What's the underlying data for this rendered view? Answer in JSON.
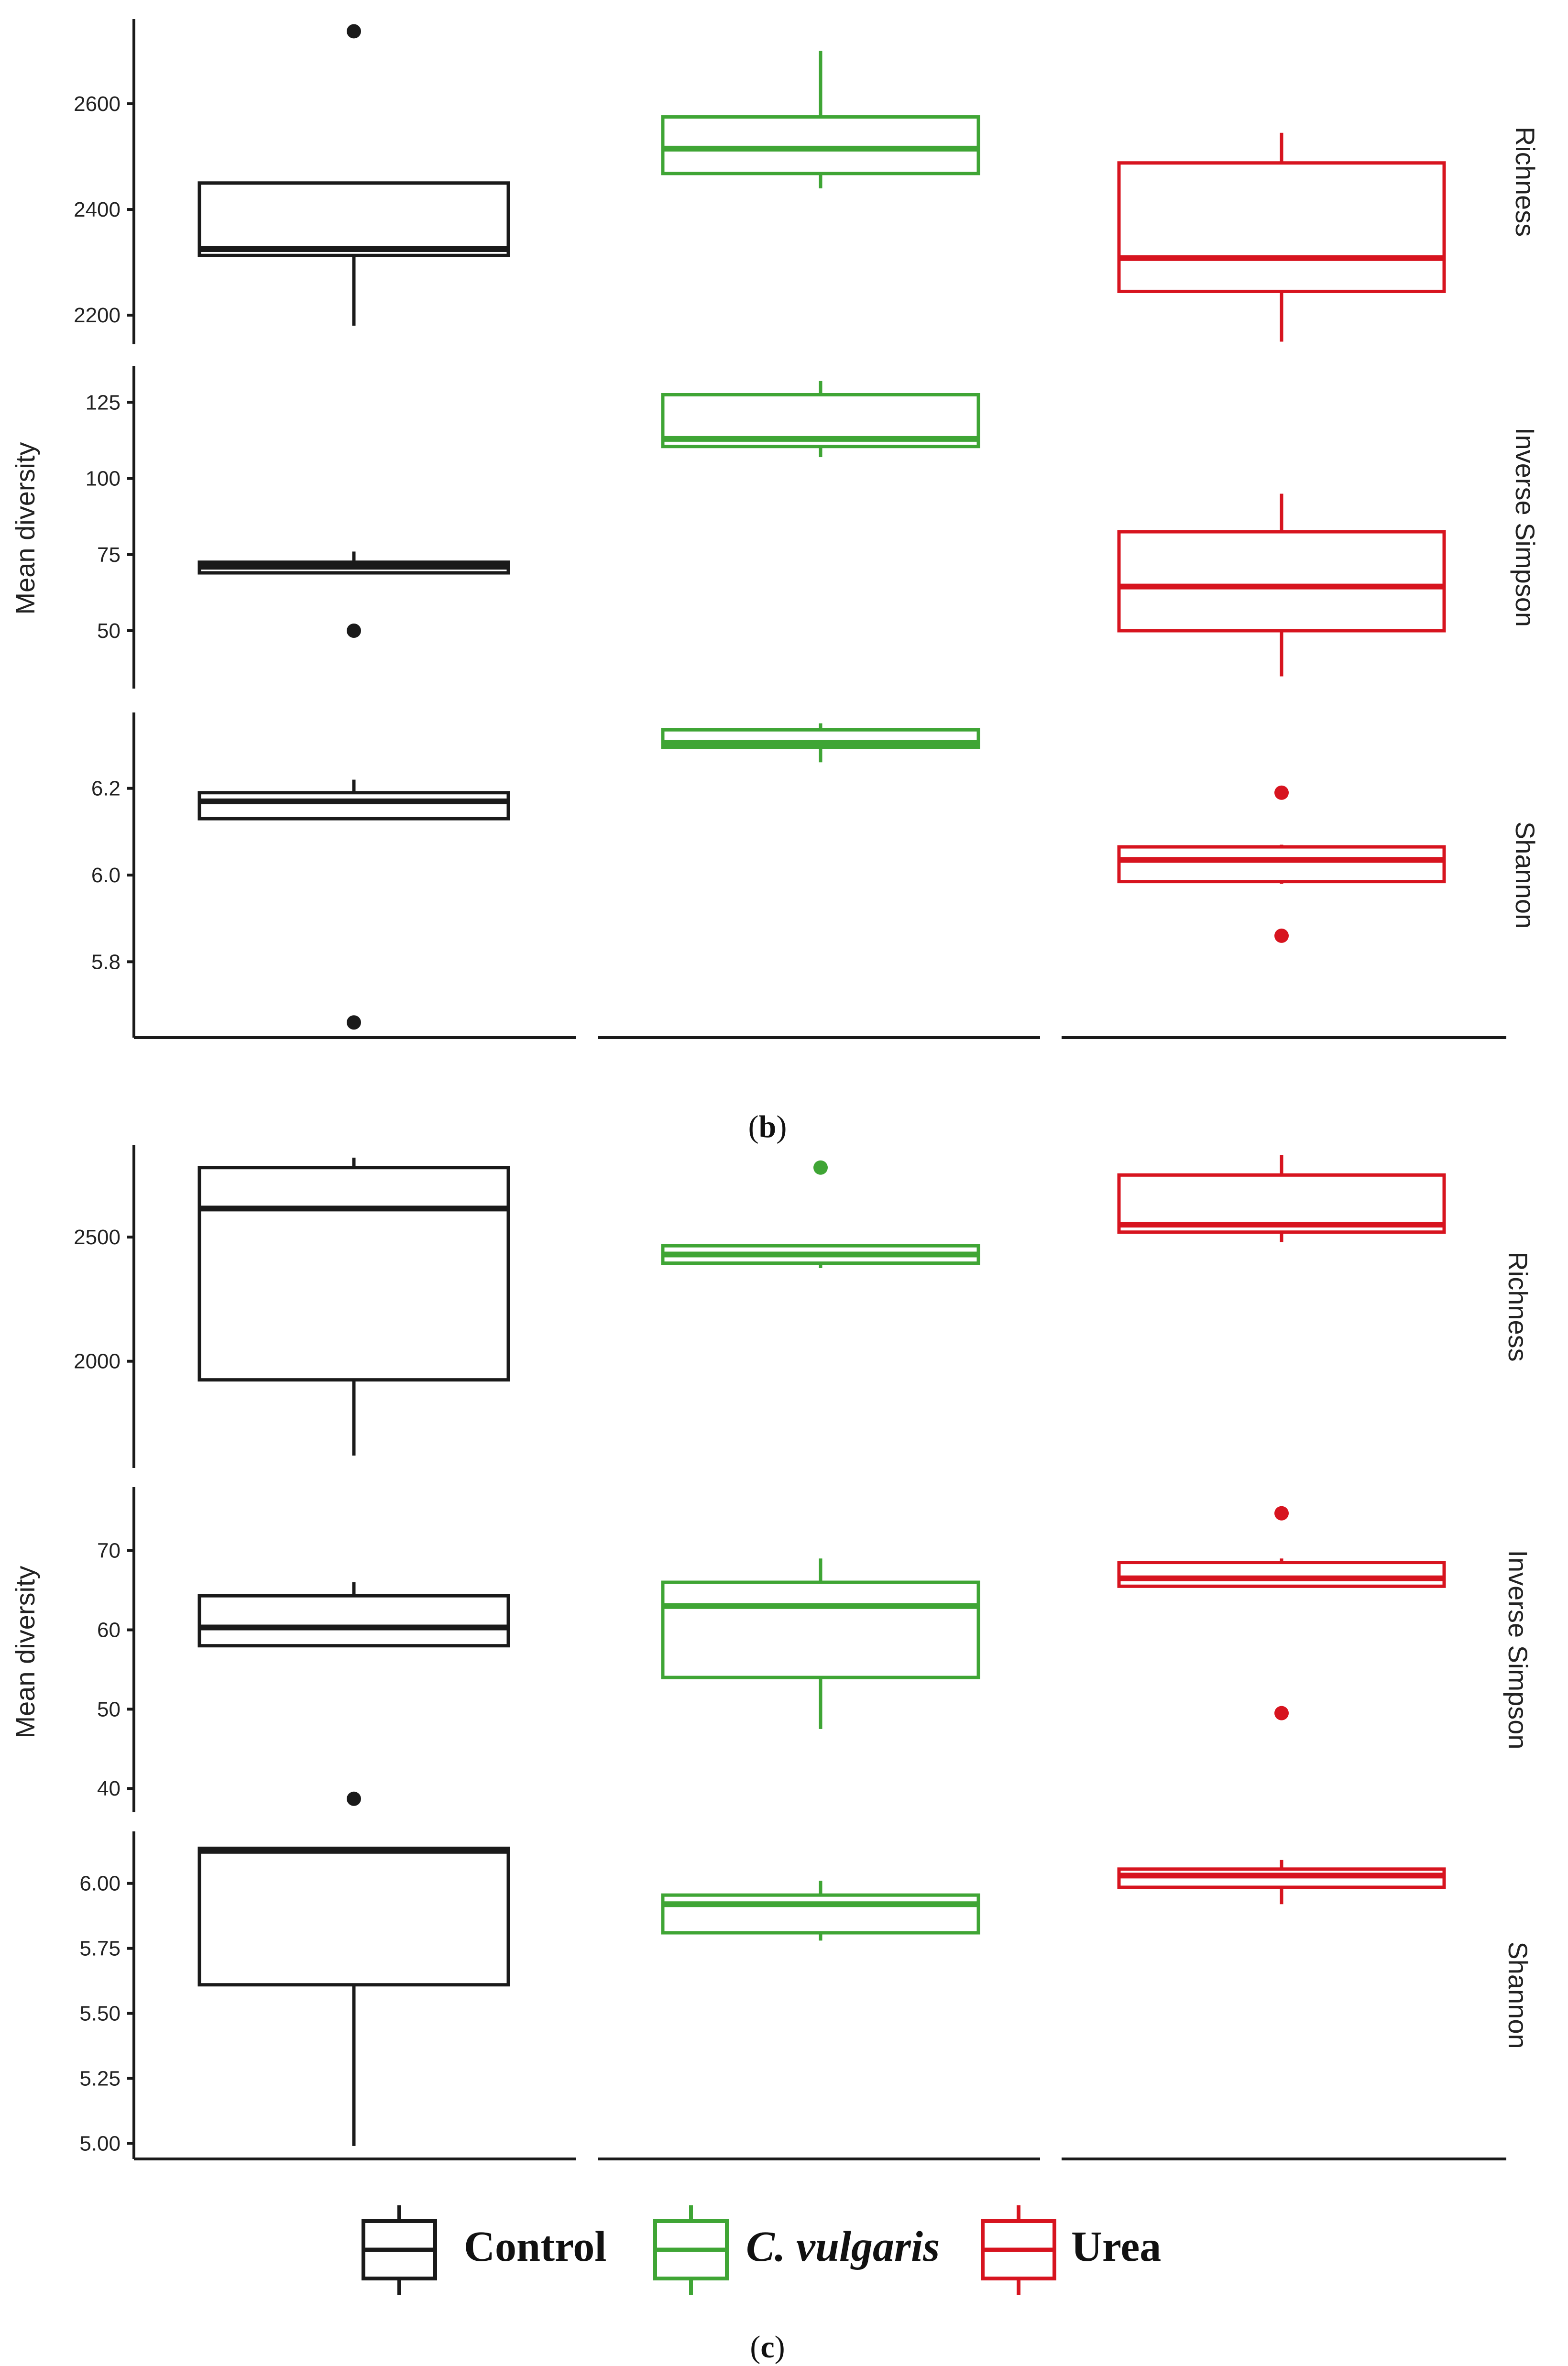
{
  "colors": {
    "Control": "#1a1a1a",
    "C. vulgaris": "#3fa535",
    "Urea": "#d7141f",
    "axis": "#1a1a1a"
  },
  "groups": [
    "Control",
    "C. vulgaris",
    "Urea"
  ],
  "legend": {
    "items": [
      {
        "label": "Control",
        "key": "Control"
      },
      {
        "label": "C. vulgaris",
        "key": "C. vulgaris"
      },
      {
        "label": "Urea",
        "key": "Urea"
      }
    ]
  },
  "caption_b": {
    "pre": "(",
    "letter": "b",
    "post": ")"
  },
  "caption_c": {
    "pre": "(",
    "letter": "c",
    "post": ")"
  },
  "chart_data": [
    {
      "type": "boxplot",
      "panel": "top",
      "ylabel": "Mean diversity",
      "facets": [
        {
          "name": "Richness",
          "ylim": [
            2145,
            2760
          ],
          "ticks": [
            2200,
            2400,
            2600
          ],
          "tick_labels": [
            "2200",
            "2400",
            "2600"
          ],
          "boxes": [
            {
              "group": "Control",
              "whisker_low": 2180,
              "q1": 2313,
              "median": 2325,
              "q3": 2450,
              "whisker_high": 2450,
              "outliers": [
                2737
              ]
            },
            {
              "group": "C. vulgaris",
              "whisker_low": 2440,
              "q1": 2468,
              "median": 2515,
              "q3": 2575,
              "whisker_high": 2700,
              "outliers": []
            },
            {
              "group": "Urea",
              "whisker_low": 2150,
              "q1": 2245,
              "median": 2308,
              "q3": 2488,
              "whisker_high": 2545,
              "outliers": []
            }
          ]
        },
        {
          "name": "Inverse Simpson",
          "ylim": [
            31,
            137
          ],
          "ticks": [
            50,
            75,
            100,
            125
          ],
          "tick_labels": [
            "50",
            "75",
            "100",
            "125"
          ],
          "boxes": [
            {
              "group": "Control",
              "whisker_low": 69,
              "q1": 69,
              "median": 71,
              "q3": 72.5,
              "whisker_high": 76,
              "outliers": [
                50
              ]
            },
            {
              "group": "C. vulgaris",
              "whisker_low": 107,
              "q1": 110.5,
              "median": 113,
              "q3": 127.5,
              "whisker_high": 132,
              "outliers": []
            },
            {
              "group": "Urea",
              "whisker_low": 35,
              "q1": 50,
              "median": 64.5,
              "q3": 82.5,
              "whisker_high": 95,
              "outliers": []
            }
          ]
        },
        {
          "name": "Shannon",
          "ylim": [
            5.625,
            6.375
          ],
          "ticks": [
            5.8,
            6.0,
            6.2
          ],
          "tick_labels": [
            "5.8",
            "6.0",
            "6.2"
          ],
          "boxes": [
            {
              "group": "Control",
              "whisker_low": 6.13,
              "q1": 6.13,
              "median": 6.17,
              "q3": 6.19,
              "whisker_high": 6.22,
              "outliers": [
                5.66
              ]
            },
            {
              "group": "C. vulgaris",
              "whisker_low": 6.26,
              "q1": 6.295,
              "median": 6.305,
              "q3": 6.335,
              "whisker_high": 6.35,
              "outliers": []
            },
            {
              "group": "Urea",
              "whisker_low": 5.98,
              "q1": 5.985,
              "median": 6.035,
              "q3": 6.065,
              "whisker_high": 6.07,
              "outliers": [
                6.19,
                5.86
              ]
            }
          ]
        }
      ]
    },
    {
      "type": "boxplot",
      "panel": "b",
      "ylabel": "Mean diversity",
      "facets": [
        {
          "name": "Richness",
          "ylim": [
            1570,
            2870
          ],
          "ticks": [
            2000,
            2500
          ],
          "tick_labels": [
            "2000",
            "2500"
          ],
          "boxes": [
            {
              "group": "Control",
              "whisker_low": 1620,
              "q1": 1925,
              "median": 2615,
              "q3": 2780,
              "whisker_high": 2820,
              "outliers": []
            },
            {
              "group": "C. vulgaris",
              "whisker_low": 2375,
              "q1": 2395,
              "median": 2430,
              "q3": 2465,
              "whisker_high": 2465,
              "outliers": [
                2780
              ]
            },
            {
              "group": "Urea",
              "whisker_low": 2480,
              "q1": 2520,
              "median": 2550,
              "q3": 2750,
              "whisker_high": 2830,
              "outliers": []
            }
          ]
        },
        {
          "name": "Inverse Simpson",
          "ylim": [
            37,
            78
          ],
          "ticks": [
            40,
            50,
            60,
            70
          ],
          "tick_labels": [
            "40",
            "50",
            "60",
            "70"
          ],
          "boxes": [
            {
              "group": "Control",
              "whisker_low": 58,
              "q1": 58,
              "median": 60.3,
              "q3": 64.3,
              "whisker_high": 66,
              "outliers": [
                38.7
              ]
            },
            {
              "group": "C. vulgaris",
              "whisker_low": 47.5,
              "q1": 54,
              "median": 63,
              "q3": 66,
              "whisker_high": 69,
              "outliers": []
            },
            {
              "group": "Urea",
              "whisker_low": 65.5,
              "q1": 65.5,
              "median": 66.5,
              "q3": 68.5,
              "whisker_high": 69,
              "outliers": [
                74.7,
                49.5
              ]
            }
          ]
        },
        {
          "name": "Shannon",
          "ylim": [
            4.94,
            6.2
          ],
          "ticks": [
            5.0,
            5.25,
            5.5,
            5.75,
            6.0
          ],
          "tick_labels": [
            "5.00",
            "5.25",
            "5.50",
            "5.75",
            "6.00"
          ],
          "boxes": [
            {
              "group": "Control",
              "whisker_low": 4.99,
              "q1": 5.61,
              "median": 6.125,
              "q3": 6.135,
              "whisker_high": 6.135,
              "outliers": []
            },
            {
              "group": "C. vulgaris",
              "whisker_low": 5.78,
              "q1": 5.81,
              "median": 5.92,
              "q3": 5.955,
              "whisker_high": 6.01,
              "outliers": []
            },
            {
              "group": "Urea",
              "whisker_low": 5.92,
              "q1": 5.985,
              "median": 6.03,
              "q3": 6.055,
              "whisker_high": 6.09,
              "outliers": []
            }
          ]
        }
      ]
    }
  ]
}
